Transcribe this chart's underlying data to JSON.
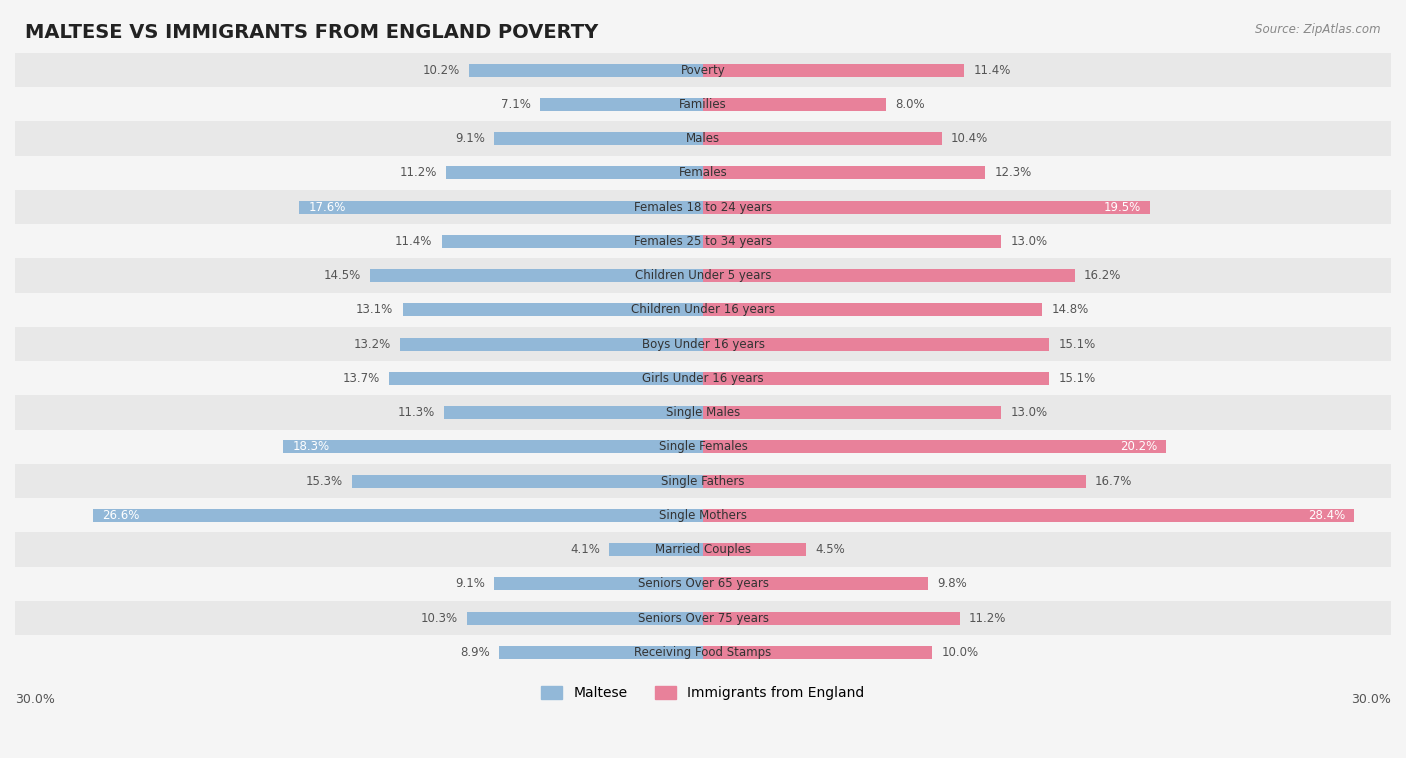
{
  "title": "MALTESE VS IMMIGRANTS FROM ENGLAND POVERTY",
  "source": "Source: ZipAtlas.com",
  "categories": [
    "Poverty",
    "Families",
    "Males",
    "Females",
    "Females 18 to 24 years",
    "Females 25 to 34 years",
    "Children Under 5 years",
    "Children Under 16 years",
    "Boys Under 16 years",
    "Girls Under 16 years",
    "Single Males",
    "Single Females",
    "Single Fathers",
    "Single Mothers",
    "Married Couples",
    "Seniors Over 65 years",
    "Seniors Over 75 years",
    "Receiving Food Stamps"
  ],
  "maltese": [
    10.2,
    7.1,
    9.1,
    11.2,
    17.6,
    11.4,
    14.5,
    13.1,
    13.2,
    13.7,
    11.3,
    18.3,
    15.3,
    26.6,
    4.1,
    9.1,
    10.3,
    8.9
  ],
  "england": [
    11.4,
    8.0,
    10.4,
    12.3,
    19.5,
    13.0,
    16.2,
    14.8,
    15.1,
    15.1,
    13.0,
    20.2,
    16.7,
    28.4,
    4.5,
    9.8,
    11.2,
    10.0
  ],
  "maltese_color": "#92b8d8",
  "england_color": "#e8819a",
  "white_label_rows": [
    4,
    11,
    13
  ],
  "bg_color": "#f5f5f5",
  "x_max": 30.0,
  "legend_labels": [
    "Maltese",
    "Immigrants from England"
  ],
  "title_fontsize": 14,
  "label_fontsize": 8.5,
  "category_fontsize": 8.5
}
